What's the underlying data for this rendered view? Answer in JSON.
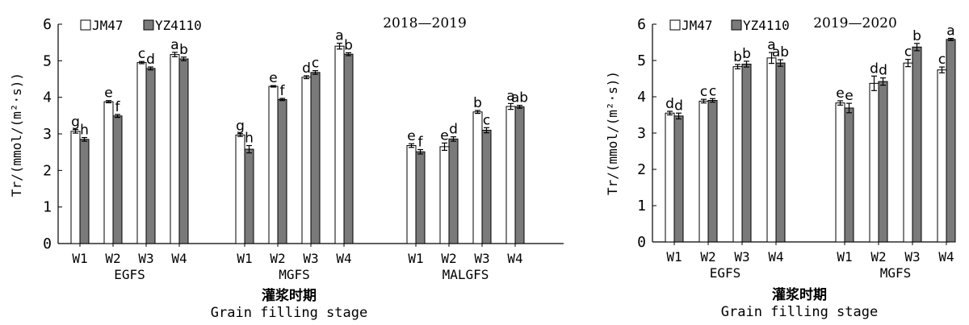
{
  "chart_data": [
    {
      "type": "bar",
      "season_label": "2018—2019",
      "ylabel": "Tr/(mmol/(m²·s))",
      "xlabel_cn": "灌浆时期",
      "xlabel_en": "Grain filling stage",
      "ylim": [
        0,
        6
      ],
      "yticks": [
        "0",
        "1",
        "2",
        "3",
        "4",
        "5",
        "6"
      ],
      "legend": {
        "placement": "top-left",
        "entries": [
          "JM47",
          "YZ4110"
        ]
      },
      "series": [
        {
          "name": "JM47",
          "color": "#ffffff"
        },
        {
          "name": "YZ4110",
          "color": "#7a7a7a"
        }
      ],
      "groups": [
        {
          "name": "EGFS",
          "categories": [
            "W1",
            "W2",
            "W3",
            "W4"
          ],
          "values": [
            [
              3.07,
              2.85
            ],
            [
              3.88,
              3.49
            ],
            [
              4.95,
              4.79
            ],
            [
              5.17,
              5.05
            ]
          ],
          "errors": [
            [
              0.05,
              0.05
            ],
            [
              0.03,
              0.04
            ],
            [
              0.03,
              0.04
            ],
            [
              0.06,
              0.05
            ]
          ],
          "letters": [
            [
              "g",
              "h"
            ],
            [
              "e",
              "f"
            ],
            [
              "c",
              "d"
            ],
            [
              "a",
              "b"
            ]
          ]
        },
        {
          "name": "MGFS",
          "categories": [
            "W1",
            "W2",
            "W3",
            "W4"
          ],
          "values": [
            [
              2.97,
              2.58
            ],
            [
              4.3,
              3.94
            ],
            [
              4.55,
              4.68
            ],
            [
              5.4,
              5.18
            ]
          ],
          "errors": [
            [
              0.04,
              0.1
            ],
            [
              0.02,
              0.03
            ],
            [
              0.04,
              0.05
            ],
            [
              0.08,
              0.04
            ]
          ],
          "letters": [
            [
              "g",
              "h"
            ],
            [
              "e",
              "f"
            ],
            [
              "d",
              "c"
            ],
            [
              "a",
              "b"
            ]
          ]
        },
        {
          "name": "MALGFS",
          "categories": [
            "W1",
            "W2",
            "W3",
            "W4"
          ],
          "values": [
            [
              2.68,
              2.51
            ],
            [
              2.65,
              2.86
            ],
            [
              3.6,
              3.1
            ],
            [
              3.75,
              3.74
            ]
          ],
          "errors": [
            [
              0.05,
              0.06
            ],
            [
              0.1,
              0.06
            ],
            [
              0.04,
              0.07
            ],
            [
              0.08,
              0.04
            ]
          ],
          "letters": [
            [
              "e",
              "f"
            ],
            [
              "e",
              "d"
            ],
            [
              "b",
              "c"
            ],
            [
              "a",
              "ab"
            ]
          ]
        }
      ]
    },
    {
      "type": "bar",
      "season_label": "2019—2020",
      "ylabel": "Tr/(mmol/(m²·s))",
      "xlabel_cn": "灌浆时期",
      "xlabel_en": "Grain filling stage",
      "ylim": [
        0,
        6
      ],
      "yticks": [
        "0",
        "1",
        "2",
        "3",
        "4",
        "5",
        "6"
      ],
      "legend": {
        "placement": "top-left",
        "entries": [
          "JM47",
          "YZ4110"
        ]
      },
      "series": [
        {
          "name": "JM47",
          "color": "#ffffff"
        },
        {
          "name": "YZ4110",
          "color": "#7a7a7a"
        }
      ],
      "groups": [
        {
          "name": "EGFS",
          "categories": [
            "W1",
            "W2",
            "W3",
            "W4"
          ],
          "values": [
            [
              3.55,
              3.47
            ],
            [
              3.88,
              3.9
            ],
            [
              4.83,
              4.9
            ],
            [
              5.07,
              4.93
            ]
          ],
          "errors": [
            [
              0.05,
              0.08
            ],
            [
              0.05,
              0.05
            ],
            [
              0.06,
              0.08
            ],
            [
              0.15,
              0.09
            ]
          ],
          "letters": [
            [
              "d",
              "d"
            ],
            [
              "c",
              "c"
            ],
            [
              "b",
              "b"
            ],
            [
              "a",
              "ab"
            ]
          ]
        },
        {
          "name": "MGFS",
          "categories": [
            "W1",
            "W2",
            "W3",
            "W4"
          ],
          "values": [
            [
              3.83,
              3.69
            ],
            [
              4.37,
              4.42
            ],
            [
              4.93,
              5.37
            ],
            [
              4.74,
              5.58
            ]
          ],
          "errors": [
            [
              0.06,
              0.13
            ],
            [
              0.2,
              0.1
            ],
            [
              0.1,
              0.1
            ],
            [
              0.08,
              0.03
            ]
          ],
          "letters": [
            [
              "e",
              "e"
            ],
            [
              "d",
              "d"
            ],
            [
              "c",
              "b"
            ],
            [
              "c",
              "a"
            ]
          ]
        }
      ]
    }
  ]
}
